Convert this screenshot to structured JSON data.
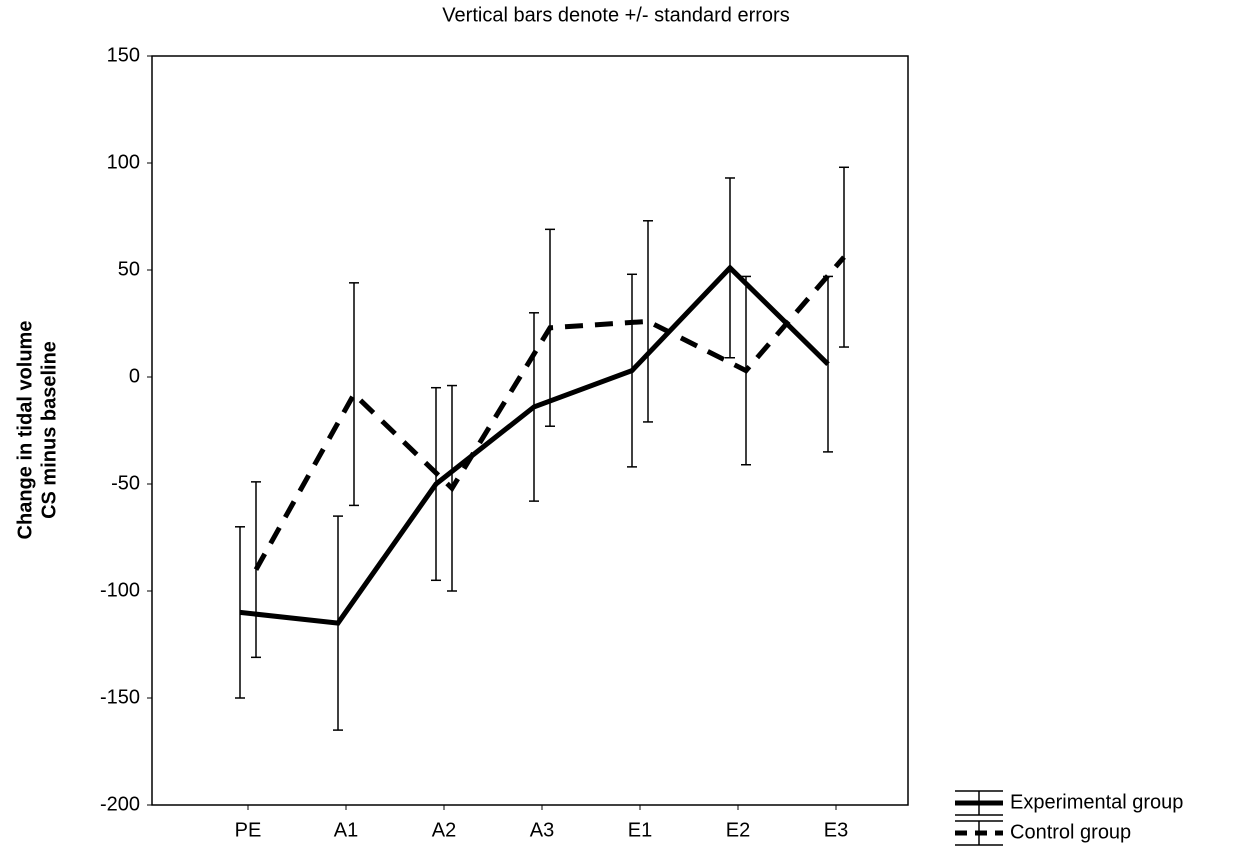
{
  "chart_data": {
    "type": "line",
    "title": "Vertical bars denote +/- standard errors",
    "ylabel": [
      "Change in tidal volume",
      "CS minus baseline"
    ],
    "categories": [
      "PE",
      "A1",
      "A2",
      "A3",
      "E1",
      "E2",
      "E3"
    ],
    "ylim": [
      -200,
      150
    ],
    "yticks": [
      -200,
      -150,
      -100,
      -50,
      0,
      50,
      100,
      150
    ],
    "grid": false,
    "legend": "bottom-right",
    "series": [
      {
        "name": "Experimental group",
        "color": "#000000",
        "style": "solid",
        "values": [
          -110,
          -115,
          -50,
          -14,
          3,
          51,
          6
        ],
        "errors": [
          40,
          50,
          45,
          44,
          45,
          42,
          41
        ]
      },
      {
        "name": "Control group",
        "color": "#000000",
        "style": "dashed",
        "values": [
          -90,
          -8,
          -52,
          23,
          26,
          3,
          56
        ],
        "errors": [
          41,
          52,
          48,
          46,
          47,
          44,
          42
        ]
      }
    ]
  }
}
